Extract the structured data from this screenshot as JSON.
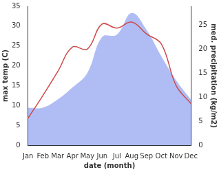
{
  "chart_data": {
    "type": "line",
    "x_label": "date (month)",
    "y_label": "max temp (C)",
    "y2_label": "med. precipitation (kg/m2)",
    "categories": [
      "Jan",
      "Feb",
      "Mar",
      "Apr",
      "May",
      "Jun",
      "Jul",
      "Aug",
      "Sep",
      "Oct",
      "Nov",
      "Dec"
    ],
    "series": [
      {
        "name": "med. precipitation (kg/m2)",
        "type": "area",
        "axis": "y2",
        "color": "#b0bdf5",
        "values": [
          7.8,
          7.8,
          9.5,
          12,
          15,
          22.5,
          23,
          27.5,
          24,
          18.5,
          13.5,
          9.5
        ]
      },
      {
        "name": "max temp (C)",
        "type": "line",
        "axis": "y",
        "color": "#cd4a4a",
        "values": [
          6.8,
          12.5,
          18.5,
          24.7,
          24.2,
          30.5,
          29.5,
          31,
          28,
          25.5,
          15,
          10.5
        ]
      }
    ],
    "ylim": [
      0,
      35
    ],
    "yticks": [
      0,
      5,
      10,
      15,
      20,
      25,
      30,
      35
    ],
    "y2lim": [
      0,
      28.9
    ],
    "y2ticks": [
      0,
      5,
      10,
      15,
      20,
      25
    ],
    "grid": false
  }
}
